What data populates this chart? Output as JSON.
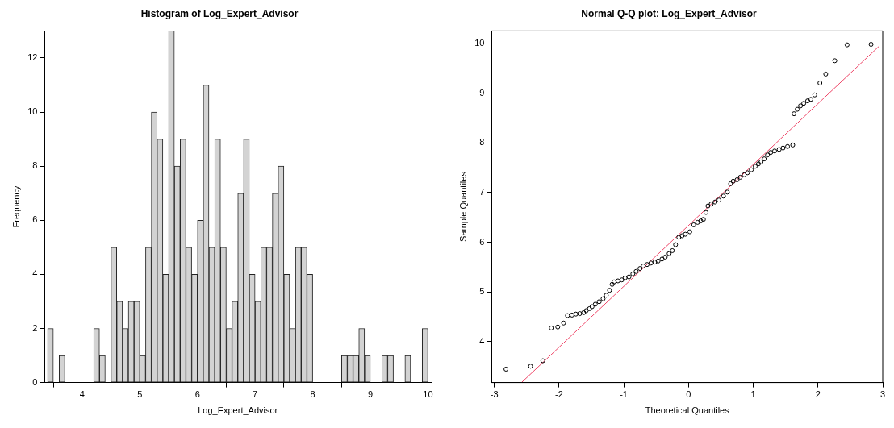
{
  "chart_data": [
    {
      "type": "histogram",
      "title": "Histogram of Log_Expert_Advisor",
      "xlabel": "Log_Expert_Advisor",
      "ylabel": "Frequency",
      "color": "#d3d3d3",
      "grid": false,
      "bins": [
        3.4,
        3.5,
        3.6,
        3.7,
        3.8,
        3.9,
        4.0,
        4.1,
        4.2,
        4.3,
        4.4,
        4.5,
        4.6,
        4.7,
        4.8,
        4.9,
        5.0,
        5.1,
        5.2,
        5.3,
        5.4,
        5.5,
        5.6,
        5.7,
        5.8,
        5.9,
        6.0,
        6.1,
        6.2,
        6.3,
        6.4,
        6.5,
        6.6,
        6.7,
        6.8,
        6.9,
        7.0,
        7.1,
        7.2,
        7.3,
        7.4,
        7.5,
        7.6,
        7.7,
        7.8,
        7.9,
        8.0,
        8.1,
        8.2,
        8.3,
        8.4,
        8.5,
        8.6,
        8.7,
        8.8,
        8.9,
        9.0,
        9.1,
        9.2,
        9.3,
        9.4,
        9.5,
        9.6,
        9.7,
        9.8,
        9.9,
        10.0
      ],
      "values": [
        2,
        0,
        1,
        0,
        0,
        0,
        0,
        0,
        2,
        1,
        0,
        5,
        3,
        2,
        3,
        3,
        1,
        5,
        10,
        9,
        4,
        13,
        8,
        9,
        5,
        4,
        6,
        11,
        5,
        9,
        5,
        2,
        3,
        7,
        9,
        4,
        3,
        5,
        5,
        7,
        8,
        4,
        2,
        5,
        5,
        4,
        0,
        0,
        0,
        0,
        0,
        1,
        1,
        1,
        2,
        1,
        0,
        0,
        1,
        1,
        0,
        0,
        1,
        0,
        0,
        2
      ],
      "xlim": [
        3.35,
        10.05
      ],
      "xticks": [
        4,
        5,
        6,
        7,
        8,
        9,
        10
      ],
      "ylim": [
        0,
        13
      ],
      "yticks": [
        0,
        2,
        4,
        6,
        8,
        10,
        12
      ]
    },
    {
      "type": "scatter",
      "title": "Normal Q-Q plot: Log_Expert_Advisor",
      "xlabel": "Theoretical Quantiles",
      "ylabel": "Sample Quantiles",
      "grid": false,
      "series": [
        {
          "type": "scatter",
          "marker": "circle",
          "color": "#000000",
          "x": [
            -2.82,
            -2.44,
            -2.25,
            -2.12,
            -2.02,
            -1.93,
            -1.87,
            -1.8,
            -1.74,
            -1.68,
            -1.62,
            -1.58,
            -1.53,
            -1.49,
            -1.44,
            -1.38,
            -1.32,
            -1.27,
            -1.22,
            -1.18,
            -1.15,
            -1.09,
            -1.03,
            -0.98,
            -0.92,
            -0.86,
            -0.81,
            -0.75,
            -0.7,
            -0.64,
            -0.58,
            -0.52,
            -0.47,
            -0.41,
            -0.36,
            -0.3,
            -0.25,
            -0.2,
            -0.15,
            -0.1,
            -0.05,
            0.02,
            0.08,
            0.14,
            0.19,
            0.23,
            0.27,
            0.3,
            0.35,
            0.41,
            0.47,
            0.54,
            0.6,
            0.65,
            0.69,
            0.75,
            0.8,
            0.86,
            0.91,
            0.97,
            1.03,
            1.08,
            1.12,
            1.17,
            1.22,
            1.27,
            1.33,
            1.4,
            1.46,
            1.53,
            1.61,
            1.63,
            1.68,
            1.73,
            1.78,
            1.84,
            1.89,
            1.95,
            2.03,
            2.12,
            2.26,
            2.45,
            2.82
          ],
          "values": [
            3.44,
            3.5,
            3.61,
            4.27,
            4.29,
            4.37,
            4.52,
            4.53,
            4.55,
            4.56,
            4.58,
            4.62,
            4.66,
            4.7,
            4.75,
            4.8,
            4.86,
            4.93,
            5.03,
            5.15,
            5.2,
            5.22,
            5.24,
            5.28,
            5.3,
            5.36,
            5.41,
            5.47,
            5.52,
            5.55,
            5.58,
            5.6,
            5.62,
            5.66,
            5.7,
            5.77,
            5.83,
            5.95,
            6.1,
            6.13,
            6.16,
            6.21,
            6.35,
            6.4,
            6.43,
            6.46,
            6.6,
            6.73,
            6.77,
            6.81,
            6.85,
            6.93,
            7.01,
            7.18,
            7.23,
            7.26,
            7.31,
            7.36,
            7.4,
            7.46,
            7.53,
            7.58,
            7.62,
            7.68,
            7.76,
            7.81,
            7.84,
            7.87,
            7.9,
            7.93,
            7.96,
            8.59,
            8.68,
            8.75,
            8.8,
            8.85,
            8.88,
            8.97,
            9.21,
            9.39,
            9.66,
            9.98,
            9.99
          ]
        },
        {
          "type": "line",
          "color": "#ee4466",
          "x": [
            -2.58,
            2.95
          ],
          "values": [
            3.17,
            9.96
          ]
        }
      ],
      "xlim": [
        -3.04,
        3.0
      ],
      "xticks": [
        -3,
        -2,
        -1,
        0,
        1,
        2,
        3
      ],
      "ylim": [
        3.17,
        10.26
      ],
      "yticks": [
        4,
        5,
        6,
        7,
        8,
        9,
        10
      ]
    }
  ]
}
